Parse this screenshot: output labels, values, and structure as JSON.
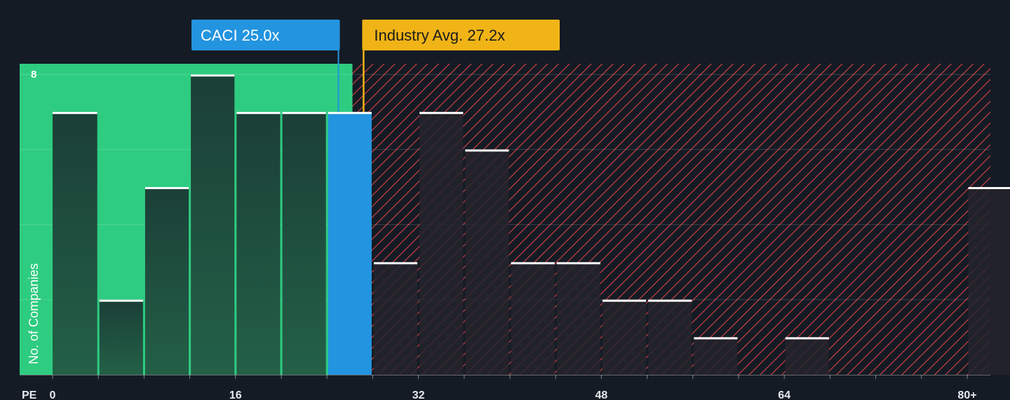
{
  "chart_data": {
    "type": "bar",
    "xlabel": "PE",
    "ylabel": "No. of Companies",
    "x_ticks": [
      "0",
      "16",
      "32",
      "48",
      "64",
      "80+"
    ],
    "x_tick_values": [
      0,
      16,
      32,
      48,
      64,
      80
    ],
    "y_ticks": [
      "8"
    ],
    "y_tick_values": [
      8
    ],
    "xlim": [
      0,
      80
    ],
    "ylim": [
      0,
      8.25
    ],
    "bin_width": 4,
    "bins": [
      {
        "start": 0,
        "value": 7
      },
      {
        "start": 4,
        "value": 2
      },
      {
        "start": 8,
        "value": 5
      },
      {
        "start": 12,
        "value": 8
      },
      {
        "start": 16,
        "value": 7
      },
      {
        "start": 20,
        "value": 7
      },
      {
        "start": 24,
        "value": 7,
        "highlight": true
      },
      {
        "start": 28,
        "value": 3
      },
      {
        "start": 32,
        "value": 7
      },
      {
        "start": 36,
        "value": 6
      },
      {
        "start": 40,
        "value": 3
      },
      {
        "start": 44,
        "value": 3
      },
      {
        "start": 48,
        "value": 2
      },
      {
        "start": 52,
        "value": 2
      },
      {
        "start": 56,
        "value": 1
      },
      {
        "start": 64,
        "value": 1
      },
      {
        "start": 80,
        "value": 5
      }
    ],
    "company": {
      "label": "CACI 25.0x",
      "value": 25.0
    },
    "industry": {
      "label": "Industry Avg. 27.2x",
      "value": 27.2
    },
    "colors": {
      "background": "#151b24",
      "fair_zone": "#2ecc80",
      "bar_in_zone": "#1f4a3c",
      "highlight_bar": "#2394e0",
      "hatch_zone": "#e0474c",
      "bar_out_zone": "#25232d",
      "company_callout": "#2394e0",
      "industry_callout": "#f0b416",
      "bar_cap": "#ffffff"
    }
  }
}
